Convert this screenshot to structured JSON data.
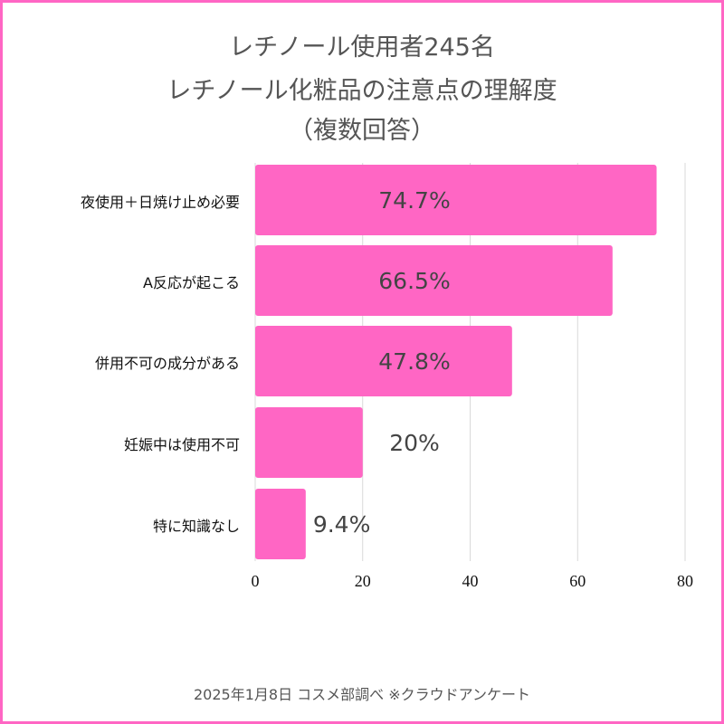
{
  "chart_data": {
    "type": "bar",
    "orientation": "horizontal",
    "title": [
      "レチノール使用者245名",
      "レチノール化粧品の注意点の理解度",
      "（複数回答）"
    ],
    "categories": [
      "夜使用＋日焼け止め必要",
      "A反応が起こる",
      "併用不可の成分がある",
      "妊娠中は使用不可",
      "特に知識なし"
    ],
    "values": [
      74.7,
      66.5,
      47.8,
      20,
      9.4
    ],
    "value_labels": [
      "74.7%",
      "66.5%",
      "47.8%",
      "20%",
      "9.4%"
    ],
    "xlim": [
      0,
      80
    ],
    "xticks": [
      "0",
      "20",
      "40",
      "60",
      "80"
    ],
    "grid": true,
    "bar_color": "#ff66c4"
  },
  "footer": "2025年1月8日 コスメ部調べ ※クラウドアンケート"
}
